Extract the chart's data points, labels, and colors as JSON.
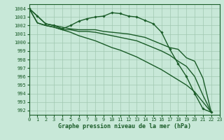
{
  "title": "Graphe pression niveau de la mer (hPa)",
  "bg_color": "#c8e8d8",
  "grid_color": "#a0c8b0",
  "line_color": "#1a5c28",
  "xlim": [
    0,
    23
  ],
  "ylim": [
    991.5,
    1004.5
  ],
  "yticks": [
    992,
    993,
    994,
    995,
    996,
    997,
    998,
    999,
    1000,
    1001,
    1002,
    1003,
    1004
  ],
  "xticks": [
    0,
    1,
    2,
    3,
    4,
    5,
    6,
    7,
    8,
    9,
    10,
    11,
    12,
    13,
    14,
    15,
    16,
    17,
    18,
    19,
    20,
    21,
    22,
    23
  ],
  "series": [
    {
      "x": [
        0,
        1,
        2,
        3,
        4,
        5,
        6,
        7,
        8,
        9,
        10,
        11,
        12,
        13,
        14,
        15,
        16,
        17,
        18,
        19,
        20,
        21,
        22
      ],
      "y": [
        1004.0,
        1003.1,
        1002.2,
        1002.0,
        1001.6,
        1002.0,
        1002.5,
        1002.8,
        1003.0,
        1003.1,
        1003.5,
        1003.4,
        1003.1,
        1003.0,
        1002.6,
        1002.2,
        1001.2,
        999.2,
        997.5,
        996.0,
        994.0,
        992.2,
        991.8
      ],
      "marker": true,
      "linewidth": 1.0
    },
    {
      "x": [
        0,
        1,
        2,
        3,
        4,
        5,
        6,
        7,
        8,
        9,
        10,
        11,
        12,
        13,
        14,
        15,
        16,
        17,
        18,
        19,
        20,
        21,
        22
      ],
      "y": [
        1004.0,
        1003.1,
        1002.2,
        1002.0,
        1001.8,
        1001.6,
        1001.5,
        1001.5,
        1001.5,
        1001.3,
        1001.2,
        1001.1,
        1001.0,
        1000.8,
        1000.6,
        1000.2,
        999.8,
        999.4,
        999.2,
        998.2,
        997.8,
        995.8,
        991.8
      ],
      "marker": false,
      "linewidth": 1.0
    },
    {
      "x": [
        0,
        1,
        2,
        3,
        4,
        5,
        6,
        7,
        8,
        9,
        10,
        11,
        12,
        13,
        14,
        15,
        16,
        17,
        18,
        19,
        20,
        21,
        22
      ],
      "y": [
        1004.0,
        1002.3,
        1002.0,
        1001.8,
        1001.5,
        1001.2,
        1000.8,
        1000.5,
        1000.2,
        999.8,
        999.4,
        999.1,
        998.7,
        998.3,
        997.8,
        997.3,
        996.8,
        996.2,
        995.6,
        995.0,
        994.2,
        993.0,
        991.8
      ],
      "marker": false,
      "linewidth": 1.0
    },
    {
      "x": [
        0,
        1,
        2,
        3,
        4,
        5,
        6,
        7,
        8,
        9,
        10,
        11,
        12,
        13,
        14,
        15,
        16,
        17,
        18,
        19,
        20,
        21,
        22
      ],
      "y": [
        1004.0,
        1002.3,
        1002.0,
        1001.8,
        1001.5,
        1001.5,
        1001.3,
        1001.3,
        1001.2,
        1001.0,
        1000.8,
        1000.6,
        1000.4,
        1000.2,
        999.8,
        999.4,
        999.0,
        998.5,
        997.8,
        997.2,
        996.0,
        993.8,
        991.8
      ],
      "marker": false,
      "linewidth": 1.0
    }
  ]
}
